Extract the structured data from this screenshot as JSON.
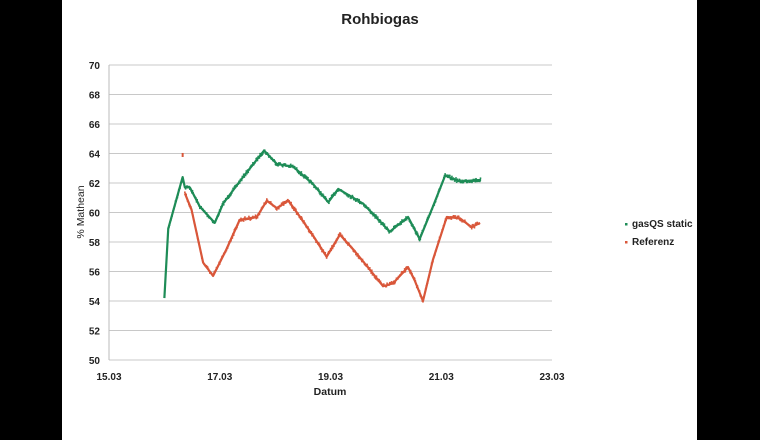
{
  "chart_data": {
    "type": "scatter",
    "title": "Rohbiogas",
    "xlabel": "Datum",
    "ylabel": "% Mathean",
    "xlim": [
      15,
      23
    ],
    "ylim": [
      50,
      70
    ],
    "x_ticks": [
      15,
      17,
      19,
      21,
      23
    ],
    "x_tick_labels": [
      "15.03",
      "17.03",
      "19.03",
      "21.03",
      "23.03"
    ],
    "y_ticks": [
      50,
      52,
      54,
      56,
      58,
      60,
      62,
      64,
      66,
      68,
      70
    ],
    "y_tick_labels": [
      "50",
      "52",
      "54",
      "56",
      "58",
      "60",
      "62",
      "64",
      "66",
      "68",
      "70"
    ],
    "grid": "horizontal",
    "legend": "right",
    "series": [
      {
        "name": "gasQS static",
        "color": "#1e8c57",
        "x": [
          16.0,
          16.07,
          16.33,
          16.37,
          16.46,
          16.64,
          16.91,
          17.06,
          17.42,
          17.8,
          18.03,
          18.33,
          18.69,
          18.96,
          19.14,
          19.59,
          20.07,
          20.4,
          20.61,
          20.85,
          21.07,
          21.34,
          21.64,
          21.72
        ],
        "y": [
          54.2,
          58.9,
          62.4,
          61.7,
          61.7,
          60.4,
          59.3,
          60.6,
          62.4,
          64.2,
          63.3,
          63.1,
          61.9,
          60.7,
          61.6,
          60.6,
          58.7,
          59.7,
          58.2,
          60.4,
          62.5,
          62.1,
          62.2,
          62.2
        ]
      },
      {
        "name": "Referenz",
        "color": "#d9573a",
        "x": [
          16.37,
          16.49,
          16.7,
          16.88,
          17.12,
          17.36,
          17.67,
          17.85,
          18.03,
          18.24,
          18.45,
          18.69,
          18.93,
          19.17,
          19.41,
          19.65,
          19.95,
          20.13,
          20.4,
          20.52,
          20.67,
          20.85,
          21.1,
          21.34,
          21.55,
          21.7
        ],
        "y": [
          61.3,
          60.2,
          56.6,
          55.7,
          57.5,
          59.5,
          59.7,
          60.8,
          60.3,
          60.8,
          59.7,
          58.4,
          57.0,
          58.5,
          57.5,
          56.4,
          55.0,
          55.2,
          56.3,
          55.4,
          54.0,
          56.8,
          59.7,
          59.6,
          59.0,
          59.3
        ],
        "outliers": [
          {
            "x": 16.33,
            "y": 63.9
          }
        ]
      }
    ]
  }
}
